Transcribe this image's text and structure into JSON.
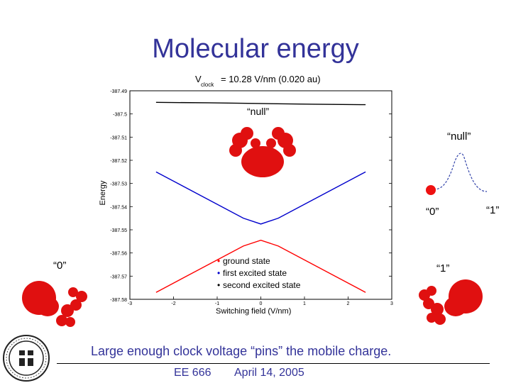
{
  "slide": {
    "title": "Molecular energy",
    "caption": "Large enough clock voltage “pins” the mobile charge.",
    "footer_course": "EE 666",
    "footer_date": "April 14, 2005",
    "label_null_inset": "“null”",
    "label_null_right": "“null”",
    "label_zero_left": "“0”",
    "label_zero_right": "“0”",
    "label_one_mid": "“1”",
    "label_one_far": "“1”"
  },
  "chart_data": {
    "type": "line",
    "title_main": "V",
    "title_sub": "clock",
    "title_rest": " = 10.28 V/nm (0.020 au)",
    "xlabel": "Switching field (V/nm)",
    "ylabel": "Energy",
    "xlim": [
      -3,
      3
    ],
    "ylim": [
      -387.58,
      -387.49
    ],
    "xticks": [
      "-3",
      "-2",
      "-1",
      "0",
      "1",
      "2",
      "3"
    ],
    "yticks": [
      "-387.49",
      "-387.5",
      "-387.51",
      "-387.52",
      "-387.53",
      "-387.54",
      "-387.55",
      "-387.56",
      "-387.57",
      "-387.58"
    ],
    "series": [
      {
        "name": "ground state",
        "color": "#ff0000",
        "x": [
          -2.4,
          -1.2,
          -0.4,
          0,
          0.4,
          1.2,
          2.4
        ],
        "y": [
          -387.577,
          -387.565,
          -387.557,
          -387.5545,
          -387.557,
          -387.565,
          -387.577
        ]
      },
      {
        "name": "first excited state",
        "color": "#0000cc",
        "x": [
          -2.4,
          -1.2,
          -0.4,
          0,
          0.4,
          1.2,
          2.4
        ],
        "y": [
          -387.525,
          -387.537,
          -387.545,
          -387.5475,
          -387.545,
          -387.537,
          -387.525
        ]
      },
      {
        "name": "second excited state",
        "color": "#000000",
        "x": [
          -2.4,
          -1.2,
          0,
          1.2,
          2.4
        ],
        "y": [
          -387.495,
          -387.4952,
          -387.4955,
          -387.4958,
          -387.496
        ]
      }
    ]
  }
}
